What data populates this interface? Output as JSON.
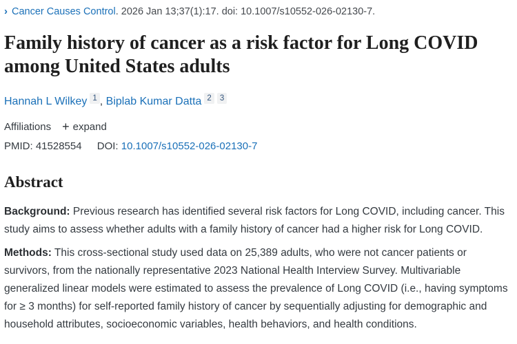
{
  "colors": {
    "link_blue": "#1a70b8",
    "text_dark": "#343a40",
    "title_dark": "#1f1f1f",
    "badge_bg": "#f0f1f2",
    "badge_text": "#33557d"
  },
  "citation": {
    "chevron_icon": "›",
    "journal": "Cancer Causes Control",
    "meta": ". 2026 Jan 13;37(1):17. doi: 10.1007/s10552-026-02130-7."
  },
  "title": "Family history of cancer as a risk factor for Long COVID among United States adults",
  "authors": [
    {
      "name": "Hannah L Wilkey",
      "sups": [
        "1"
      ]
    },
    {
      "name": "Biplab Kumar Datta",
      "sups": [
        "2",
        "3"
      ]
    }
  ],
  "author_separator": ",",
  "affiliations": {
    "label": "Affiliations",
    "plus_icon": "+",
    "expand_label": "expand"
  },
  "identifiers": {
    "pmid_label": "PMID:",
    "pmid_value": "41528554",
    "doi_label": "DOI:",
    "doi_link": "10.1007/s10552-026-02130-7"
  },
  "abstract": {
    "heading": "Abstract",
    "paragraphs": [
      {
        "label": "Background:",
        "text": "Previous research has identified several risk factors for Long COVID, including cancer. This study aims to assess whether adults with a family history of cancer had a higher risk for Long COVID."
      },
      {
        "label": "Methods:",
        "text": "This cross-sectional study used data on 25,389 adults, who were not cancer patients or survivors, from the nationally representative 2023 National Health Interview Survey. Multivariable generalized linear models were estimated to assess the prevalence of Long COVID (i.e., having symptoms for ≥ 3 months) for self-reported family history of cancer by sequentially adjusting for demographic and household attributes, socioeconomic variables, health behaviors, and health conditions."
      }
    ]
  }
}
